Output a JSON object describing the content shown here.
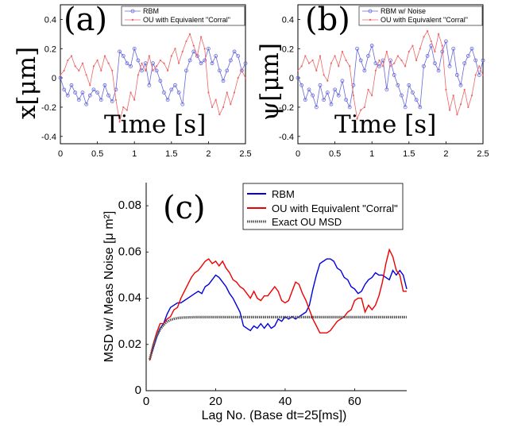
{
  "chart_data": [
    {
      "type": "line",
      "panel_label": "(a)",
      "ylabel": "x[μm]",
      "xlabel": "Time [s]",
      "xlim": [
        0,
        2.5
      ],
      "ylim": [
        -0.45,
        0.5
      ],
      "xticks": [
        0,
        0.5,
        1,
        1.5,
        2,
        2.5
      ],
      "xtick_labels": [
        "0",
        "0.5",
        "1",
        "1.5",
        "2",
        "2.5"
      ],
      "yticks": [
        -0.4,
        -0.2,
        0,
        0.2,
        0.4
      ],
      "ytick_labels": [
        "-0.4",
        "-0.2",
        "0",
        "0.2",
        "0.4"
      ],
      "legend_position": "top-right",
      "series": [
        {
          "name": "RBM",
          "color": "#6666dd",
          "marker": "circle",
          "x": [
            0,
            0.05,
            0.1,
            0.15,
            0.2,
            0.25,
            0.3,
            0.35,
            0.4,
            0.45,
            0.5,
            0.55,
            0.6,
            0.65,
            0.7,
            0.75,
            0.8,
            0.85,
            0.9,
            0.95,
            1,
            1.05,
            1.1,
            1.15,
            1.2,
            1.25,
            1.3,
            1.35,
            1.4,
            1.45,
            1.5,
            1.55,
            1.6,
            1.65,
            1.7,
            1.75,
            1.8,
            1.85,
            1.9,
            1.95,
            2,
            2.05,
            2.1,
            2.15,
            2.2,
            2.25,
            2.3,
            2.35,
            2.4,
            2.45,
            2.5
          ],
          "y": [
            0,
            -0.08,
            -0.12,
            -0.05,
            -0.1,
            -0.15,
            -0.1,
            -0.18,
            -0.12,
            -0.08,
            -0.1,
            -0.15,
            -0.05,
            -0.12,
            -0.16,
            -0.08,
            0.18,
            0.15,
            0.1,
            0.08,
            0.2,
            0.12,
            0.05,
            0.1,
            -0.05,
            0.1,
            0.05,
            -0.02,
            -0.1,
            -0.15,
            -0.08,
            -0.05,
            -0.1,
            -0.18,
            0.05,
            0.12,
            0.18,
            0.15,
            0.1,
            0.12,
            0.2,
            0.1,
            0.15,
            0.05,
            -0.02,
            0.05,
            0.12,
            0.18,
            0.15,
            0.05,
            0.1
          ]
        },
        {
          "name": "OU with Equivalent \"Corral\"",
          "color": "#ee6666",
          "marker": "dot",
          "x": [
            0,
            0.05,
            0.1,
            0.15,
            0.2,
            0.25,
            0.3,
            0.35,
            0.4,
            0.45,
            0.5,
            0.55,
            0.6,
            0.65,
            0.7,
            0.75,
            0.8,
            0.85,
            0.9,
            0.95,
            1,
            1.05,
            1.1,
            1.15,
            1.2,
            1.25,
            1.3,
            1.35,
            1.4,
            1.45,
            1.5,
            1.55,
            1.6,
            1.65,
            1.7,
            1.75,
            1.8,
            1.85,
            1.9,
            1.95,
            2,
            2.05,
            2.1,
            2.15,
            2.2,
            2.25,
            2.3,
            2.35,
            2.4,
            2.45,
            2.5
          ],
          "y": [
            0.02,
            0.05,
            0.12,
            0.15,
            0.08,
            0.05,
            0.1,
            0.02,
            -0.05,
            0.08,
            0.12,
            0.05,
            0.15,
            0.1,
            0.05,
            -0.15,
            -0.3,
            -0.2,
            -0.22,
            -0.1,
            -0.15,
            0.02,
            0.1,
            0.05,
            0.15,
            0.05,
            0.08,
            0.12,
            0.1,
            0.05,
            0.15,
            0.2,
            0.1,
            0.18,
            0.25,
            0.3,
            0.22,
            0.15,
            0.28,
            0.2,
            -0.1,
            -0.2,
            -0.15,
            -0.25,
            -0.2,
            -0.1,
            -0.18,
            -0.1,
            0,
            0.05,
            0
          ]
        }
      ]
    },
    {
      "type": "line",
      "panel_label": "(b)",
      "ylabel": "ψ[μm]",
      "xlabel": "Time [s]",
      "xlim": [
        0,
        2.5
      ],
      "ylim": [
        -0.45,
        0.5
      ],
      "xticks": [
        0,
        0.5,
        1,
        1.5,
        2,
        2.5
      ],
      "xtick_labels": [
        "0",
        "0.5",
        "1",
        "1.5",
        "2",
        "2.5"
      ],
      "yticks": [
        -0.4,
        -0.2,
        0,
        0.2,
        0.4
      ],
      "ytick_labels": [
        "-0.4",
        "-0.2",
        "0",
        "0.2",
        "0.4"
      ],
      "legend_position": "top-right",
      "series": [
        {
          "name": "RBM w/ Noise",
          "color": "#6666dd",
          "marker": "circle",
          "x": [
            0,
            0.05,
            0.1,
            0.15,
            0.2,
            0.25,
            0.3,
            0.35,
            0.4,
            0.45,
            0.5,
            0.55,
            0.6,
            0.65,
            0.7,
            0.75,
            0.8,
            0.85,
            0.9,
            0.95,
            1,
            1.05,
            1.1,
            1.15,
            1.2,
            1.25,
            1.3,
            1.35,
            1.4,
            1.45,
            1.5,
            1.55,
            1.6,
            1.65,
            1.7,
            1.75,
            1.8,
            1.85,
            1.9,
            1.95,
            2,
            2.05,
            2.1,
            2.15,
            2.2,
            2.25,
            2.3,
            2.35,
            2.4,
            2.45,
            2.5
          ],
          "y": [
            0,
            -0.05,
            -0.15,
            -0.08,
            -0.12,
            -0.2,
            -0.05,
            -0.15,
            -0.1,
            -0.18,
            -0.08,
            -0.12,
            -0.02,
            -0.15,
            -0.2,
            -0.05,
            0.2,
            0.12,
            0.05,
            0.15,
            0.22,
            0.1,
            0.08,
            0.12,
            -0.08,
            0.12,
            0.02,
            -0.05,
            -0.12,
            -0.2,
            -0.05,
            -0.1,
            -0.15,
            -0.2,
            0.08,
            0.15,
            0.22,
            0.1,
            0.05,
            0.18,
            0.25,
            0.08,
            0.2,
            0.02,
            -0.05,
            0.1,
            0.15,
            0.2,
            0.12,
            0.02,
            0.12
          ]
        },
        {
          "name": "OU with Equivalent \"Corral\"",
          "color": "#ee6666",
          "marker": "dot",
          "x": [
            0,
            0.05,
            0.1,
            0.15,
            0.2,
            0.25,
            0.3,
            0.35,
            0.4,
            0.45,
            0.5,
            0.55,
            0.6,
            0.65,
            0.7,
            0.75,
            0.8,
            0.85,
            0.9,
            0.95,
            1,
            1.05,
            1.1,
            1.15,
            1.2,
            1.25,
            1.3,
            1.35,
            1.4,
            1.45,
            1.5,
            1.55,
            1.6,
            1.65,
            1.7,
            1.75,
            1.8,
            1.85,
            1.9,
            1.95,
            2,
            2.05,
            2.1,
            2.15,
            2.2,
            2.25,
            2.3,
            2.35,
            2.4,
            2.45,
            2.5
          ],
          "y": [
            0.05,
            0.08,
            0.15,
            0.1,
            0.12,
            0.05,
            0.15,
            0.02,
            -0.02,
            0.1,
            0.15,
            0.08,
            0.18,
            0.12,
            0.08,
            -0.12,
            -0.28,
            -0.22,
            -0.2,
            -0.08,
            -0.12,
            0.05,
            0.12,
            0.08,
            0.18,
            0.08,
            0.1,
            0.15,
            0.12,
            0.08,
            0.18,
            0.22,
            0.12,
            0.2,
            0.28,
            0.32,
            0.25,
            0.18,
            0.3,
            0.22,
            -0.08,
            -0.22,
            -0.12,
            -0.25,
            -0.18,
            -0.08,
            -0.2,
            -0.12,
            0.02,
            0.08,
            0.02
          ]
        }
      ]
    },
    {
      "type": "line",
      "panel_label": "(c)",
      "ylabel": "MSD w/ Meas Noise [μ m²]",
      "xlabel": "Lag No. (Base dt=25[ms])",
      "xlim": [
        0,
        75
      ],
      "ylim": [
        0,
        0.09
      ],
      "xticks": [
        0,
        20,
        40,
        60
      ],
      "xtick_labels": [
        "0",
        "20",
        "40",
        "60"
      ],
      "yticks": [
        0,
        0.02,
        0.04,
        0.06,
        0.08
      ],
      "ytick_labels": [
        "0",
        "0.02",
        "0.04",
        "0.06",
        "0.08"
      ],
      "legend_position": "top-right",
      "series": [
        {
          "name": "RBM",
          "color": "#0000dd",
          "x": [
            1,
            2,
            3,
            4,
            5,
            6,
            7,
            8,
            9,
            10,
            11,
            12,
            13,
            14,
            15,
            16,
            17,
            18,
            19,
            20,
            21,
            22,
            23,
            24,
            25,
            26,
            27,
            28,
            29,
            30,
            31,
            32,
            33,
            34,
            35,
            36,
            37,
            38,
            39,
            40,
            41,
            42,
            43,
            44,
            45,
            46,
            47,
            48,
            49,
            50,
            51,
            52,
            53,
            54,
            55,
            56,
            57,
            58,
            59,
            60,
            61,
            62,
            63,
            64,
            65,
            66,
            67,
            68,
            69,
            70,
            71,
            72,
            73,
            74,
            75
          ],
          "y": [
            0.0135,
            0.018,
            0.023,
            0.027,
            0.029,
            0.033,
            0.036,
            0.037,
            0.038,
            0.038,
            0.039,
            0.04,
            0.041,
            0.042,
            0.043,
            0.042,
            0.045,
            0.046,
            0.048,
            0.05,
            0.049,
            0.047,
            0.045,
            0.042,
            0.04,
            0.037,
            0.034,
            0.028,
            0.027,
            0.026,
            0.028,
            0.027,
            0.029,
            0.027,
            0.029,
            0.027,
            0.028,
            0.031,
            0.03,
            0.032,
            0.031,
            0.032,
            0.031,
            0.032,
            0.033,
            0.034,
            0.037,
            0.044,
            0.05,
            0.055,
            0.056,
            0.057,
            0.057,
            0.056,
            0.053,
            0.052,
            0.049,
            0.048,
            0.045,
            0.044,
            0.042,
            0.043,
            0.046,
            0.048,
            0.049,
            0.051,
            0.05,
            0.05,
            0.049,
            0.048,
            0.052,
            0.05,
            0.052,
            0.05,
            0.044
          ]
        },
        {
          "name": "OU with Equivalent \"Corral\"",
          "color": "#ee0000",
          "x": [
            1,
            2,
            3,
            4,
            5,
            6,
            7,
            8,
            9,
            10,
            11,
            12,
            13,
            14,
            15,
            16,
            17,
            18,
            19,
            20,
            21,
            22,
            23,
            24,
            25,
            26,
            27,
            28,
            29,
            30,
            31,
            32,
            33,
            34,
            35,
            36,
            37,
            38,
            39,
            40,
            41,
            42,
            43,
            44,
            45,
            46,
            47,
            48,
            49,
            50,
            51,
            52,
            53,
            54,
            55,
            56,
            57,
            58,
            59,
            60,
            61,
            62,
            63,
            64,
            65,
            66,
            67,
            68,
            69,
            70,
            71,
            72,
            73,
            74,
            75
          ],
          "y": [
            0.013,
            0.02,
            0.025,
            0.029,
            0.029,
            0.031,
            0.032,
            0.035,
            0.036,
            0.04,
            0.043,
            0.046,
            0.049,
            0.051,
            0.052,
            0.054,
            0.056,
            0.057,
            0.055,
            0.056,
            0.054,
            0.056,
            0.053,
            0.051,
            0.048,
            0.047,
            0.045,
            0.044,
            0.042,
            0.04,
            0.043,
            0.04,
            0.039,
            0.041,
            0.041,
            0.043,
            0.045,
            0.043,
            0.039,
            0.038,
            0.039,
            0.043,
            0.047,
            0.046,
            0.042,
            0.039,
            0.035,
            0.031,
            0.028,
            0.025,
            0.025,
            0.025,
            0.026,
            0.028,
            0.03,
            0.031,
            0.032,
            0.034,
            0.035,
            0.039,
            0.04,
            0.04,
            0.034,
            0.037,
            0.035,
            0.037,
            0.041,
            0.047,
            0.055,
            0.061,
            0.058,
            0.052,
            0.05,
            0.043,
            0.043
          ]
        },
        {
          "name": "Exact OU MSD",
          "color": "#555555",
          "style": "thick dotted",
          "x": [
            1,
            2,
            3,
            4,
            5,
            6,
            7,
            8,
            9,
            10,
            12,
            14,
            16,
            18,
            20,
            25,
            30,
            35,
            40,
            45,
            50,
            55,
            60,
            65,
            70,
            75
          ],
          "y": [
            0.0135,
            0.019,
            0.0235,
            0.0265,
            0.0285,
            0.0298,
            0.0306,
            0.0311,
            0.0314,
            0.0316,
            0.0317,
            0.0318,
            0.0318,
            0.0318,
            0.0318,
            0.0318,
            0.0318,
            0.0318,
            0.0318,
            0.0318,
            0.0318,
            0.0318,
            0.0318,
            0.0318,
            0.0318,
            0.0318
          ]
        }
      ]
    }
  ]
}
